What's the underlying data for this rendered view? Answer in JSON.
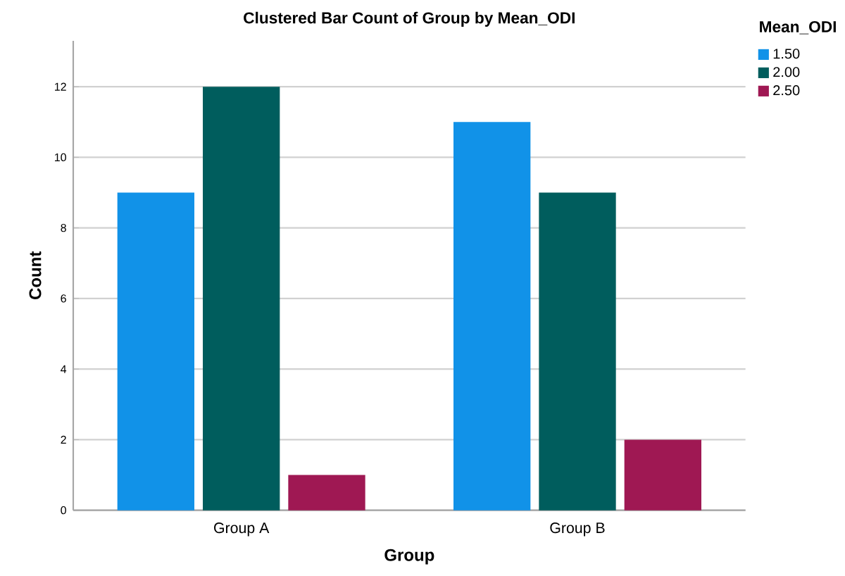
{
  "chart_data": {
    "type": "bar",
    "title": "Clustered Bar Count of Group by Mean_ODI",
    "xlabel": "Group",
    "ylabel": "Count",
    "legend_title": "Mean_ODI",
    "categories": [
      "Group A",
      "Group B"
    ],
    "series": [
      {
        "name": "1.50",
        "color": "#1192e8",
        "values": [
          9,
          11
        ]
      },
      {
        "name": "2.00",
        "color": "#005d5d",
        "values": [
          12,
          9
        ]
      },
      {
        "name": "2.50",
        "color": "#9f1853",
        "values": [
          1,
          2
        ]
      }
    ],
    "ylim": [
      0,
      13.3
    ],
    "yticks": [
      0,
      2,
      4,
      6,
      8,
      10,
      12
    ],
    "grid": "y",
    "legend": "top right"
  }
}
